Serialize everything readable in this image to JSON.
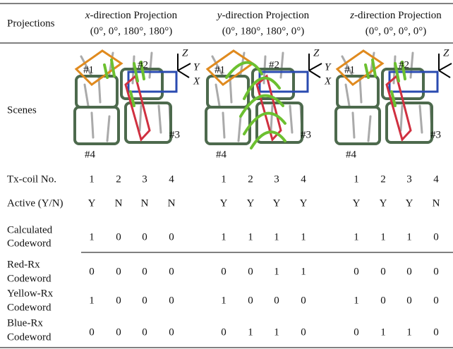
{
  "header": {
    "row_label": "Projections",
    "columns": [
      {
        "axis": "x",
        "title": "-direction Projection",
        "angles": "(0°, 0°, 180°, 180°)"
      },
      {
        "axis": "y",
        "title": "-direction Projection",
        "angles": "(0°, 180°, 180°, 0°)"
      },
      {
        "axis": "z",
        "title": "-direction Projection",
        "angles": "(0°, 0°, 0°, 0°)"
      }
    ]
  },
  "scenes": {
    "label": "Scenes",
    "images": [
      {
        "coils": [
          "#1",
          "#2",
          "#3",
          "#4"
        ],
        "axes": [
          "Z",
          "Y",
          "X"
        ]
      },
      {
        "coils": [
          "#1",
          "#2",
          "#3",
          "#4"
        ],
        "axes": [
          "Z",
          "Y",
          "X"
        ]
      },
      {
        "coils": [
          "#1",
          "#2",
          "#3",
          "#4"
        ],
        "axes": [
          "Z",
          "Y",
          "X"
        ]
      }
    ]
  },
  "rows": [
    {
      "label": [
        "Tx-coil No."
      ],
      "values": [
        [
          1,
          2,
          3,
          4
        ],
        [
          1,
          2,
          3,
          4
        ],
        [
          1,
          2,
          3,
          4
        ]
      ]
    },
    {
      "label": [
        "Active (Y/N)"
      ],
      "values": [
        [
          "Y",
          "N",
          "N",
          "N"
        ],
        [
          "Y",
          "Y",
          "Y",
          "Y"
        ],
        [
          "Y",
          "Y",
          "Y",
          "N"
        ]
      ]
    },
    {
      "label": [
        "Calculated",
        "Codeword"
      ],
      "values": [
        [
          1,
          0,
          0,
          0
        ],
        [
          1,
          1,
          1,
          1
        ],
        [
          1,
          1,
          1,
          0
        ]
      ]
    },
    {
      "label": [
        "Red-Rx",
        "Codeword"
      ],
      "values": [
        [
          0,
          0,
          0,
          0
        ],
        [
          0,
          0,
          1,
          1
        ],
        [
          0,
          0,
          0,
          0
        ]
      ]
    },
    {
      "label": [
        "Yellow-Rx",
        "Codeword"
      ],
      "values": [
        [
          1,
          0,
          0,
          0
        ],
        [
          1,
          0,
          0,
          0
        ],
        [
          1,
          0,
          0,
          0
        ]
      ]
    },
    {
      "label": [
        "Blue-Rx",
        "Codeword"
      ],
      "values": [
        [
          0,
          0,
          0,
          0
        ],
        [
          0,
          1,
          1,
          0
        ],
        [
          0,
          1,
          1,
          0
        ]
      ]
    }
  ]
}
